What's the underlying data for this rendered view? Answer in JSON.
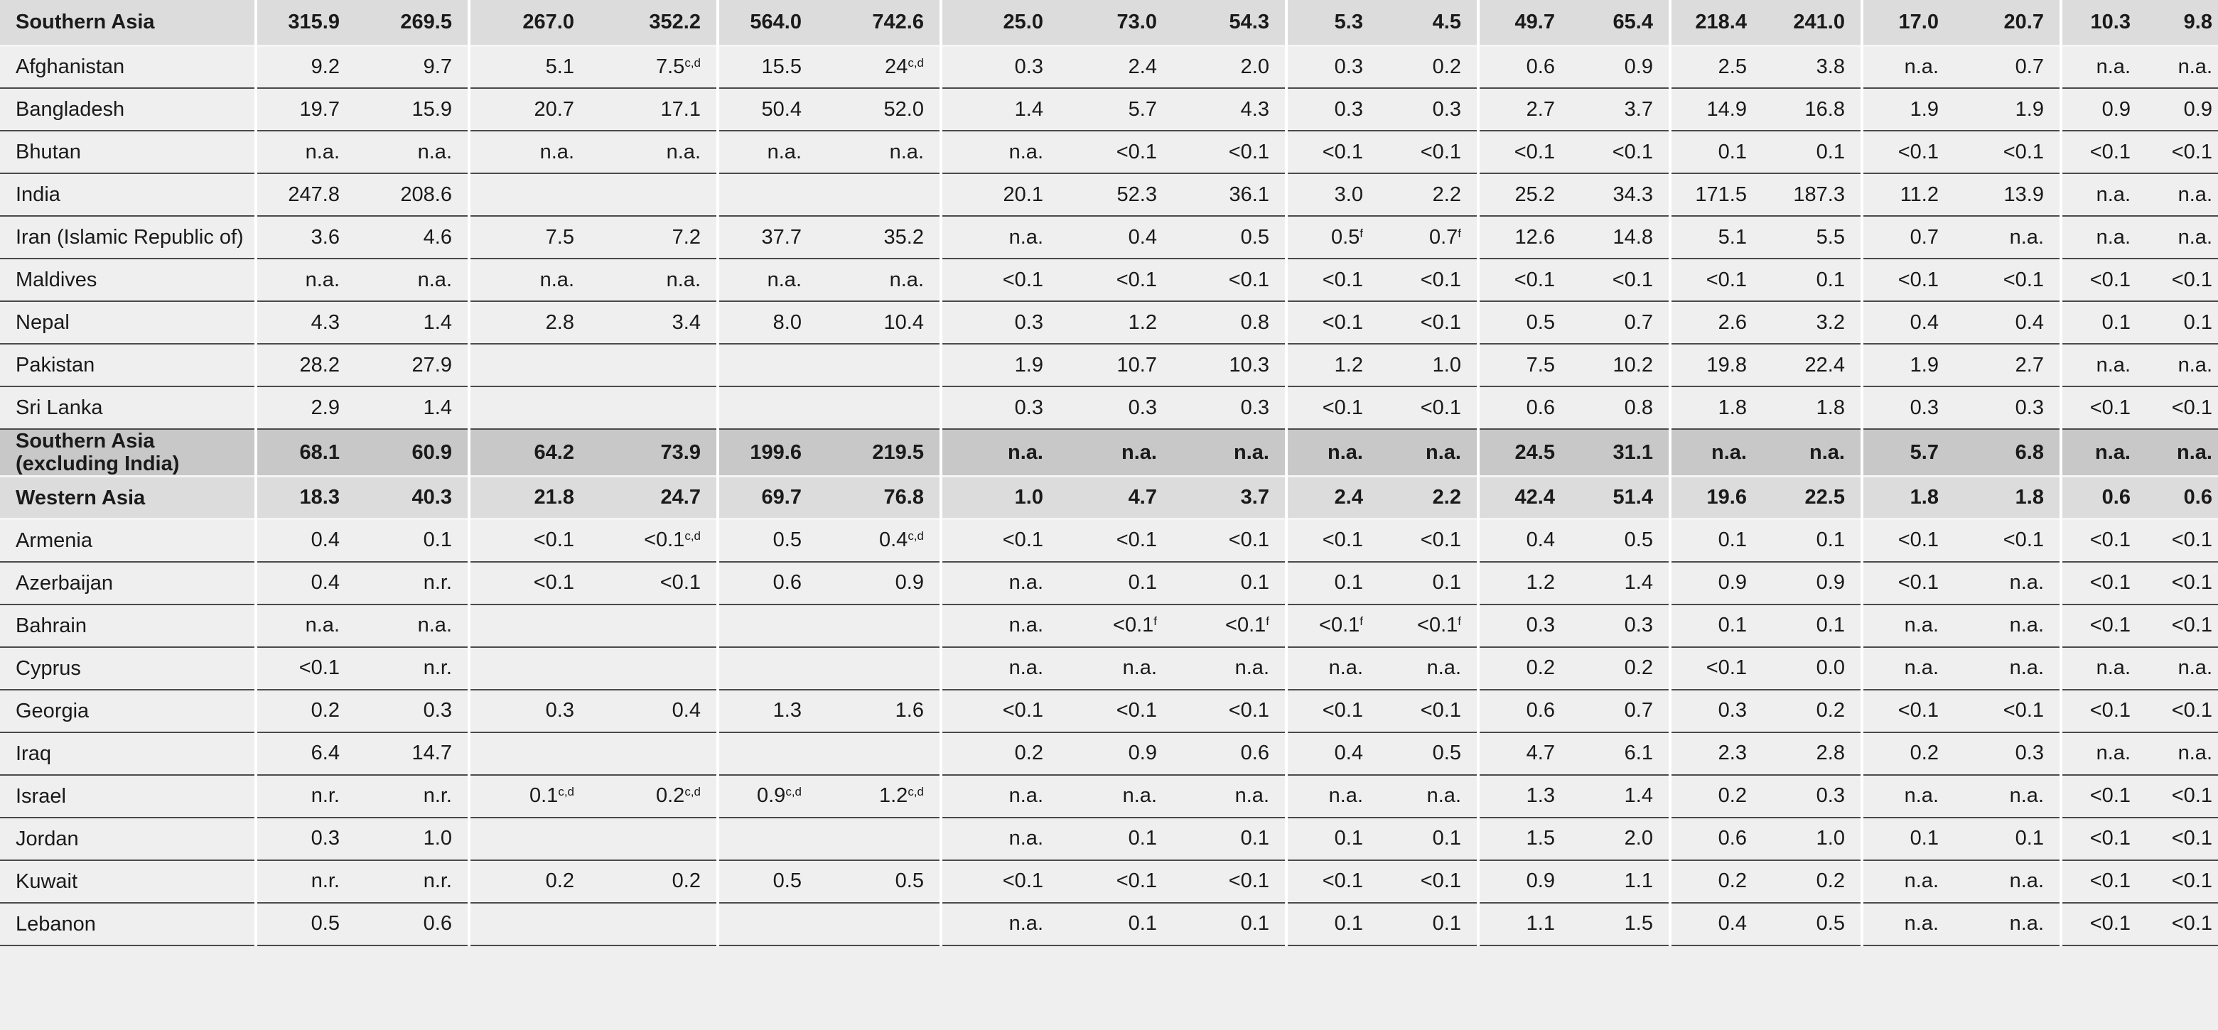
{
  "table": {
    "rows": [
      {
        "name": "Southern Asia",
        "cells": [
          "315.9",
          "269.5",
          "267.0",
          "352.2",
          "564.0",
          "742.6",
          "25.0",
          "73.0",
          "54.3",
          "5.3",
          "4.5",
          "49.7",
          "65.4",
          "218.4",
          "241.0",
          "17.0",
          "20.7",
          "10.3",
          "9.8"
        ]
      },
      {
        "name": "Afghanistan",
        "cells": [
          "9.2",
          "9.7",
          "5.1",
          {
            "v": "7.5",
            "sup": "c,d"
          },
          "15.5",
          {
            "v": "24",
            "sup": "c,d"
          },
          "0.3",
          "2.4",
          "2.0",
          "0.3",
          "0.2",
          "0.6",
          "0.9",
          "2.5",
          "3.8",
          "n.a.",
          "0.7",
          "n.a.",
          "n.a."
        ]
      },
      {
        "name": "Bangladesh",
        "cells": [
          "19.7",
          "15.9",
          "20.7",
          "17.1",
          "50.4",
          "52.0",
          "1.4",
          "5.7",
          "4.3",
          "0.3",
          "0.3",
          "2.7",
          "3.7",
          "14.9",
          "16.8",
          "1.9",
          "1.9",
          "0.9",
          "0.9"
        ]
      },
      {
        "name": "Bhutan",
        "cells": [
          "n.a.",
          "n.a.",
          "n.a.",
          "n.a.",
          "n.a.",
          "n.a.",
          "n.a.",
          "<0.1",
          "<0.1",
          "<0.1",
          "<0.1",
          "<0.1",
          "<0.1",
          "0.1",
          "0.1",
          "<0.1",
          "<0.1",
          "<0.1",
          "<0.1"
        ]
      },
      {
        "name": "India",
        "cells": [
          "247.8",
          "208.6",
          null,
          null,
          null,
          null,
          "20.1",
          "52.3",
          "36.1",
          "3.0",
          "2.2",
          "25.2",
          "34.3",
          "171.5",
          "187.3",
          "11.2",
          "13.9",
          "n.a.",
          "n.a."
        ]
      },
      {
        "name": "Iran (Islamic Republic of)",
        "cells": [
          "3.6",
          "4.6",
          "7.5",
          "7.2",
          "37.7",
          "35.2",
          "n.a.",
          "0.4",
          "0.5",
          {
            "v": "0.5",
            "sup": "f"
          },
          {
            "v": "0.7",
            "sup": "f"
          },
          "12.6",
          "14.8",
          "5.1",
          "5.5",
          "0.7",
          "n.a.",
          "n.a.",
          "n.a."
        ]
      },
      {
        "name": "Maldives",
        "cells": [
          "n.a.",
          "n.a.",
          "n.a.",
          "n.a.",
          "n.a.",
          "n.a.",
          "<0.1",
          "<0.1",
          "<0.1",
          "<0.1",
          "<0.1",
          "<0.1",
          "<0.1",
          "<0.1",
          "0.1",
          "<0.1",
          "<0.1",
          "<0.1",
          "<0.1"
        ]
      },
      {
        "name": "Nepal",
        "cells": [
          "4.3",
          "1.4",
          "2.8",
          "3.4",
          "8.0",
          "10.4",
          "0.3",
          "1.2",
          "0.8",
          "<0.1",
          "<0.1",
          "0.5",
          "0.7",
          "2.6",
          "3.2",
          "0.4",
          "0.4",
          "0.1",
          "0.1"
        ]
      },
      {
        "name": "Pakistan",
        "cells": [
          "28.2",
          "27.9",
          null,
          null,
          null,
          null,
          "1.9",
          "10.7",
          "10.3",
          "1.2",
          "1.0",
          "7.5",
          "10.2",
          "19.8",
          "22.4",
          "1.9",
          "2.7",
          "n.a.",
          "n.a."
        ]
      },
      {
        "name": "Sri Lanka",
        "cells": [
          "2.9",
          "1.4",
          null,
          null,
          null,
          null,
          "0.3",
          "0.3",
          "0.3",
          "<0.1",
          "<0.1",
          "0.6",
          "0.8",
          "1.8",
          "1.8",
          "0.3",
          "0.3",
          "<0.1",
          "<0.1"
        ]
      },
      {
        "name": "Southern Asia (excluding India)",
        "cells": [
          "68.1",
          "60.9",
          "64.2",
          "73.9",
          "199.6",
          "219.5",
          "n.a.",
          "n.a.",
          "n.a.",
          "n.a.",
          "n.a.",
          "24.5",
          "31.1",
          "n.a.",
          "n.a.",
          "5.7",
          "6.8",
          "n.a.",
          "n.a."
        ]
      },
      {
        "name": "Western Asia",
        "cells": [
          "18.3",
          "40.3",
          "21.8",
          "24.7",
          "69.7",
          "76.8",
          "1.0",
          "4.7",
          "3.7",
          "2.4",
          "2.2",
          "42.4",
          "51.4",
          "19.6",
          "22.5",
          "1.8",
          "1.8",
          "0.6",
          "0.6"
        ]
      },
      {
        "name": "Armenia",
        "cells": [
          "0.4",
          "0.1",
          "<0.1",
          {
            "v": "<0.1",
            "sup": "c,d"
          },
          "0.5",
          {
            "v": "0.4",
            "sup": "c,d"
          },
          "<0.1",
          "<0.1",
          "<0.1",
          "<0.1",
          "<0.1",
          "0.4",
          "0.5",
          "0.1",
          "0.1",
          "<0.1",
          "<0.1",
          "<0.1",
          "<0.1"
        ]
      },
      {
        "name": "Azerbaijan",
        "cells": [
          "0.4",
          "n.r.",
          "<0.1",
          "<0.1",
          "0.6",
          "0.9",
          "n.a.",
          "0.1",
          "0.1",
          "0.1",
          "0.1",
          "1.2",
          "1.4",
          "0.9",
          "0.9",
          "<0.1",
          "n.a.",
          "<0.1",
          "<0.1"
        ]
      },
      {
        "name": "Bahrain",
        "cells": [
          "n.a.",
          "n.a.",
          null,
          null,
          null,
          null,
          "n.a.",
          {
            "v": "<0.1",
            "sup": "f"
          },
          {
            "v": "<0.1",
            "sup": "f"
          },
          {
            "v": "<0.1",
            "sup": "f"
          },
          {
            "v": "<0.1",
            "sup": "f"
          },
          "0.3",
          "0.3",
          "0.1",
          "0.1",
          "n.a.",
          "n.a.",
          "<0.1",
          "<0.1"
        ]
      },
      {
        "name": "Cyprus",
        "cells": [
          "<0.1",
          "n.r.",
          null,
          null,
          null,
          null,
          "n.a.",
          "n.a.",
          "n.a.",
          "n.a.",
          "n.a.",
          "0.2",
          "0.2",
          "<0.1",
          "0.0",
          "n.a.",
          "n.a.",
          "n.a.",
          "n.a."
        ]
      },
      {
        "name": "Georgia",
        "cells": [
          "0.2",
          "0.3",
          "0.3",
          "0.4",
          "1.3",
          "1.6",
          "<0.1",
          "<0.1",
          "<0.1",
          "<0.1",
          "<0.1",
          "0.6",
          "0.7",
          "0.3",
          "0.2",
          "<0.1",
          "<0.1",
          "<0.1",
          "<0.1"
        ]
      },
      {
        "name": "Iraq",
        "cells": [
          "6.4",
          "14.7",
          null,
          null,
          null,
          null,
          "0.2",
          "0.9",
          "0.6",
          "0.4",
          "0.5",
          "4.7",
          "6.1",
          "2.3",
          "2.8",
          "0.2",
          "0.3",
          "n.a.",
          "n.a."
        ]
      },
      {
        "name": "Israel",
        "cells": [
          "n.r.",
          "n.r.",
          {
            "v": "0.1",
            "sup": "c,d"
          },
          {
            "v": "0.2",
            "sup": "c,d"
          },
          {
            "v": "0.9",
            "sup": "c,d"
          },
          {
            "v": "1.2",
            "sup": "c,d"
          },
          "n.a.",
          "n.a.",
          "n.a.",
          "n.a.",
          "n.a.",
          "1.3",
          "1.4",
          "0.2",
          "0.3",
          "n.a.",
          "n.a.",
          "<0.1",
          "<0.1"
        ]
      },
      {
        "name": "Jordan",
        "cells": [
          "0.3",
          "1.0",
          null,
          null,
          null,
          null,
          "n.a.",
          "0.1",
          "0.1",
          "0.1",
          "0.1",
          "1.5",
          "2.0",
          "0.6",
          "1.0",
          "0.1",
          "0.1",
          "<0.1",
          "<0.1"
        ]
      },
      {
        "name": "Kuwait",
        "cells": [
          "n.r.",
          "n.r.",
          "0.2",
          "0.2",
          "0.5",
          "0.5",
          "<0.1",
          "<0.1",
          "<0.1",
          "<0.1",
          "<0.1",
          "0.9",
          "1.1",
          "0.2",
          "0.2",
          "n.a.",
          "n.a.",
          "<0.1",
          "<0.1"
        ]
      },
      {
        "name": "Lebanon",
        "cells": [
          "0.5",
          "0.6",
          null,
          null,
          null,
          null,
          "n.a.",
          "0.1",
          "0.1",
          "0.1",
          "0.1",
          "1.1",
          "1.5",
          "0.4",
          "0.5",
          "n.a.",
          "n.a.",
          "<0.1",
          "<0.1"
        ]
      }
    ]
  }
}
